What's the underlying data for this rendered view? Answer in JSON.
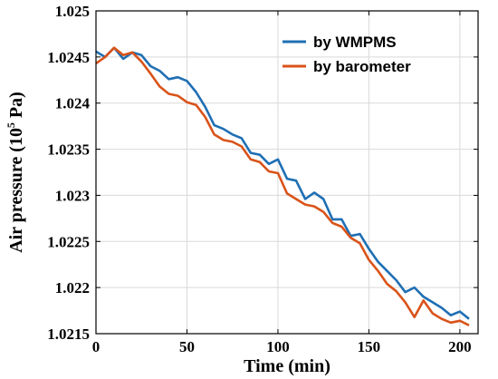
{
  "chart_data": {
    "type": "line",
    "xlabel": "Time (min)",
    "ylabel_main": "Air pressure (10",
    "ylabel_sup": "5",
    "ylabel_tail": " Pa)",
    "xlim": [
      0,
      210
    ],
    "ylim": [
      1.0215,
      1.025
    ],
    "xticks": [
      0,
      50,
      100,
      150,
      200
    ],
    "xtick_labels": [
      "0",
      "50",
      "100",
      "150",
      "200"
    ],
    "yticks": [
      1.0215,
      1.022,
      1.0225,
      1.023,
      1.0235,
      1.024,
      1.0245,
      1.025
    ],
    "ytick_labels": [
      "1.0215",
      "1.022",
      "1.0225",
      "1.023",
      "1.0235",
      "1.024",
      "1.0245",
      "1.025"
    ],
    "grid": true,
    "legend_position": "top-right",
    "x": [
      0,
      5,
      10,
      15,
      20,
      25,
      30,
      35,
      40,
      45,
      50,
      55,
      60,
      65,
      70,
      75,
      80,
      85,
      90,
      95,
      100,
      105,
      110,
      115,
      120,
      125,
      130,
      135,
      140,
      145,
      150,
      155,
      160,
      165,
      170,
      175,
      180,
      185,
      190,
      195,
      200,
      205
    ],
    "series": [
      {
        "name": "by WMPMS",
        "color": "#1f6fb4",
        "values": [
          1.02456,
          1.0245,
          1.0246,
          1.02448,
          1.02455,
          1.02452,
          1.0244,
          1.02435,
          1.02426,
          1.02428,
          1.02424,
          1.02412,
          1.02396,
          1.02376,
          1.02372,
          1.02366,
          1.02362,
          1.02346,
          1.02344,
          1.02334,
          1.02339,
          1.02318,
          1.02316,
          1.02296,
          1.02303,
          1.02296,
          1.02274,
          1.02274,
          1.02256,
          1.02258,
          1.02242,
          1.02228,
          1.02218,
          1.02208,
          1.02195,
          1.022,
          1.0219,
          1.02184,
          1.02178,
          1.0217,
          1.02174,
          1.02166
        ]
      },
      {
        "name": "by barometer",
        "color": "#d95319",
        "values": [
          1.02443,
          1.0245,
          1.0246,
          1.02452,
          1.02455,
          1.02445,
          1.02432,
          1.02418,
          1.0241,
          1.02408,
          1.02401,
          1.02398,
          1.02385,
          1.02366,
          1.0236,
          1.02358,
          1.02353,
          1.02339,
          1.02336,
          1.02326,
          1.02324,
          1.02302,
          1.02296,
          1.0229,
          1.02288,
          1.02282,
          1.0227,
          1.02266,
          1.02254,
          1.02248,
          1.0223,
          1.02218,
          1.02204,
          1.02196,
          1.02184,
          1.02168,
          1.02186,
          1.02172,
          1.02166,
          1.02162,
          1.02164,
          1.02159
        ]
      }
    ]
  }
}
